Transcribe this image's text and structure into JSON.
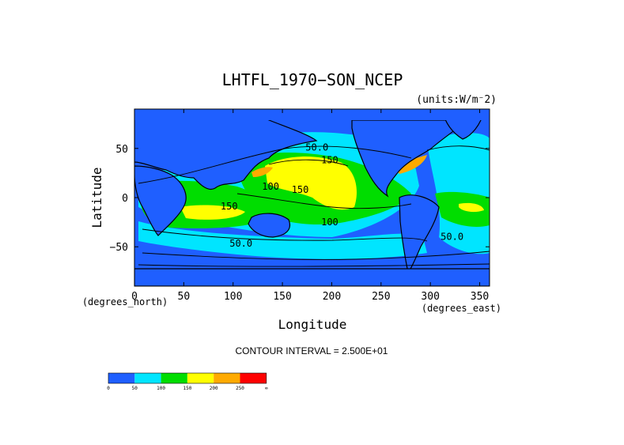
{
  "chart_data": {
    "type": "heatmap",
    "title": "LHTFL_1970−SON_NCEP",
    "units": "(units:W/m⁻2)",
    "xlabel": "Longitude",
    "ylabel": "Latitude",
    "x_unit_label": "(degrees_east)",
    "y_unit_label": "(degrees_north)",
    "xlim": [
      0,
      360
    ],
    "ylim": [
      -90,
      90
    ],
    "x_ticks": [
      "0",
      "50",
      "100",
      "150",
      "200",
      "250",
      "300",
      "350"
    ],
    "x_tick_values": [
      0,
      50,
      100,
      150,
      200,
      250,
      300,
      350
    ],
    "y_ticks": [
      "50",
      "0",
      "−50"
    ],
    "y_tick_values": [
      50,
      0,
      -50
    ],
    "contour_interval_text": "CONTOUR INTERVAL = 2.500E+01",
    "contour_labels": [
      {
        "text": "50.0",
        "lon": 185,
        "lat": 48
      },
      {
        "text": "150",
        "lon": 198,
        "lat": 35
      },
      {
        "text": "100",
        "lon": 138,
        "lat": 8
      },
      {
        "text": "150",
        "lon": 168,
        "lat": 5
      },
      {
        "text": "150",
        "lon": 96,
        "lat": -12
      },
      {
        "text": "100",
        "lon": 198,
        "lat": -28
      },
      {
        "text": "50.0",
        "lon": 108,
        "lat": -50
      },
      {
        "text": "50.0",
        "lon": 322,
        "lat": -43
      }
    ],
    "colorbar": {
      "levels": [
        "0",
        "50",
        "100",
        "150",
        "200",
        "250",
        "∞"
      ],
      "colors": [
        "#1f5fff",
        "#00e5ff",
        "#00dd00",
        "#ffff00",
        "#ffaa00",
        "#ff0000"
      ]
    },
    "colors": {
      "ocean_low": "#1f5fff",
      "mid": "#00e5ff",
      "green": "#00dd00",
      "yellow": "#ffff00",
      "orange": "#ffaa00",
      "red": "#ff0000"
    }
  }
}
